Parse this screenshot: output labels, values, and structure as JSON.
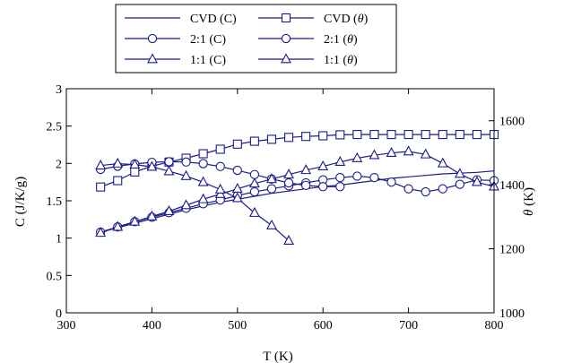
{
  "chart_data": {
    "type": "line",
    "xlabel": "T (K)",
    "ylabel": "C (J/K/g)",
    "y2label_prefix": "θ",
    "y2label_suffix": " (K)",
    "xlim": [
      300,
      800
    ],
    "ylim": [
      0,
      3
    ],
    "y2lim": [
      1000,
      1700
    ],
    "xticks": [
      "300",
      "400",
      "500",
      "600",
      "700",
      "800"
    ],
    "yticks": [
      "0",
      "0.5",
      "1",
      "1.5",
      "2",
      "2.5",
      "3"
    ],
    "y2ticks": [
      "1000",
      "1200",
      "1400",
      "1600"
    ],
    "colors": {
      "series": "#1a1a8c",
      "axis": "#000000",
      "background": "#ffffff"
    },
    "legend": {
      "placement": "top-center",
      "entries": [
        {
          "label": "CVD (C)",
          "marker": "none"
        },
        {
          "label": "CVD (",
          "theta": "θ",
          "suffix": ")",
          "marker": "square"
        },
        {
          "label": "2:1 (C)",
          "marker": "circle"
        },
        {
          "label": "2:1 (",
          "theta": "θ",
          "suffix": ")",
          "marker": "circle"
        },
        {
          "label": "1:1 (C)",
          "marker": "triangle"
        },
        {
          "label": "1:1 (",
          "theta": "θ",
          "suffix": ")",
          "marker": "triangle"
        }
      ]
    },
    "series": [
      {
        "name": "CVD (C)",
        "axis": "left",
        "marker": "none",
        "x": [
          340,
          360,
          380,
          400,
          420,
          440,
          460,
          480,
          500,
          520,
          540,
          560,
          580,
          600,
          620,
          640,
          660,
          680,
          700,
          720,
          740,
          760,
          780,
          800
        ],
        "y": [
          1.08,
          1.14,
          1.2,
          1.26,
          1.32,
          1.38,
          1.43,
          1.48,
          1.52,
          1.56,
          1.6,
          1.63,
          1.66,
          1.69,
          1.71,
          1.74,
          1.77,
          1.8,
          1.82,
          1.84,
          1.86,
          1.87,
          1.88,
          1.9
        ]
      },
      {
        "name": "CVD (θ)",
        "axis": "right",
        "marker": "square",
        "x": [
          340,
          360,
          380,
          400,
          420,
          440,
          460,
          480,
          500,
          520,
          540,
          560,
          580,
          600,
          620,
          640,
          660,
          680,
          700,
          720,
          740,
          760,
          780,
          800
        ],
        "y": [
          1393,
          1413,
          1440,
          1458,
          1471,
          1483,
          1497,
          1511,
          1527,
          1536,
          1542,
          1548,
          1551,
          1553,
          1556,
          1557,
          1557,
          1557,
          1557,
          1557,
          1557,
          1557,
          1557,
          1557
        ]
      },
      {
        "name": "2:1 (C)",
        "axis": "left",
        "marker": "circle",
        "x": [
          340,
          360,
          380,
          400,
          420,
          440,
          460,
          480,
          500,
          520,
          540,
          560,
          580,
          600,
          620,
          640,
          660,
          680,
          700,
          720,
          740,
          760,
          780,
          800
        ],
        "y": [
          1.08,
          1.15,
          1.22,
          1.28,
          1.34,
          1.4,
          1.46,
          1.51,
          1.57,
          1.62,
          1.66,
          1.7,
          1.74,
          1.78,
          1.81,
          1.83,
          1.81,
          1.75,
          1.66,
          1.62,
          1.66,
          1.72,
          1.78,
          1.77
        ]
      },
      {
        "name": "2:1 (θ)",
        "axis": "right",
        "marker": "circle",
        "x": [
          340,
          360,
          380,
          400,
          420,
          440,
          460,
          480,
          500,
          520,
          540,
          560,
          580,
          600,
          620
        ],
        "y": [
          1448,
          1458,
          1465,
          1470,
          1472,
          1471,
          1466,
          1457,
          1445,
          1432,
          1418,
          1406,
          1398,
          1394,
          1394
        ]
      },
      {
        "name": "1:1 (C)",
        "axis": "left",
        "marker": "triangle",
        "x": [
          340,
          360,
          380,
          400,
          420,
          440,
          460,
          480,
          500,
          520,
          540,
          560,
          580,
          600,
          620,
          640,
          660,
          680,
          700,
          720,
          740,
          760,
          780,
          800
        ],
        "y": [
          1.07,
          1.15,
          1.22,
          1.29,
          1.36,
          1.44,
          1.52,
          1.59,
          1.66,
          1.73,
          1.79,
          1.85,
          1.91,
          1.96,
          2.02,
          2.07,
          2.11,
          2.14,
          2.16,
          2.12,
          2.0,
          1.86,
          1.75,
          1.69
        ]
      },
      {
        "name": "1:1 (θ)",
        "axis": "right",
        "marker": "triangle",
        "x": [
          340,
          360,
          380,
          400,
          420,
          440,
          460,
          480,
          500,
          520,
          540,
          560
        ],
        "y": [
          1460,
          1466,
          1463,
          1456,
          1442,
          1427,
          1408,
          1385,
          1358,
          1312,
          1273,
          1225
        ]
      }
    ]
  }
}
